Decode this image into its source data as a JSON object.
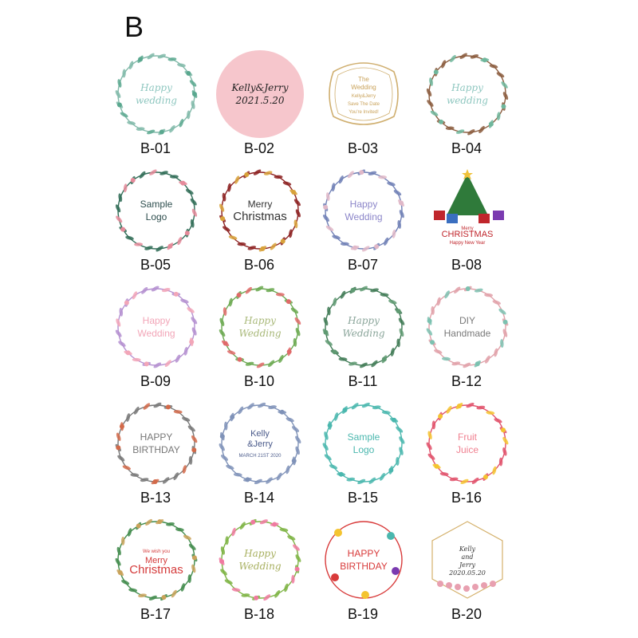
{
  "section_letter": "B",
  "stickers": [
    {
      "code": "B-01",
      "lines": [
        "Happy",
        "wedding"
      ],
      "color": "#8fc7c0",
      "style": "script",
      "bg": "#ffffff",
      "ring": "leaf",
      "ring_color": "#7fb8a8",
      "accent": "#5aa88f"
    },
    {
      "code": "B-02",
      "lines": [
        "Kelly&Jerry",
        "2021.5.20"
      ],
      "color": "#222222",
      "style": "script",
      "bg": "#f6c6cc",
      "ring": "none",
      "ring_color": "#f6c6cc",
      "accent": "#333333"
    },
    {
      "code": "B-03",
      "lines": [
        "The",
        "Wedding",
        "Kelly&Jerry",
        "Save The Date",
        "You're Invited!"
      ],
      "color": "#c9a25a",
      "style": "sans",
      "bg": "#ffffff",
      "ring": "ornate",
      "ring_color": "#cfae6e",
      "accent": "#c9a25a"
    },
    {
      "code": "B-04",
      "lines": [
        "Happy",
        "wedding"
      ],
      "color": "#8fc7c0",
      "style": "script",
      "bg": "#ffffff",
      "ring": "leaf",
      "ring_color": "#8a5a3c",
      "accent": "#6fb79c"
    },
    {
      "code": "B-05",
      "lines": [
        "Sample",
        "Logo"
      ],
      "color": "#2f4f4f",
      "style": "sans",
      "bg": "#ffffff",
      "ring": "leaf",
      "ring_color": "#2e6b55",
      "accent": "#e58a9a"
    },
    {
      "code": "B-06",
      "lines": [
        "Merry",
        "Christmas"
      ],
      "color": "#333333",
      "style": "sans",
      "bg": "#ffffff",
      "ring": "leaf",
      "ring_color": "#8b1e1e",
      "accent": "#d8a23a"
    },
    {
      "code": "B-07",
      "lines": [
        "Happy",
        "Wedding"
      ],
      "color": "#8c86c9",
      "style": "sans",
      "bg": "#ffffff",
      "ring": "leaf",
      "ring_color": "#6f7fb5",
      "accent": "#e0b8c8"
    },
    {
      "code": "B-08",
      "lines": [
        "Merry",
        "CHRISTMAS",
        "Happy New Year"
      ],
      "color": "#c0262c",
      "style": "tree",
      "bg": "#ffffff",
      "ring": "none",
      "ring_color": "#2f7a3a",
      "accent": "#f0c23a"
    },
    {
      "code": "B-09",
      "lines": [
        "Happy",
        "Wedding"
      ],
      "color": "#f2a6b8",
      "style": "sans",
      "bg": "#ffffff",
      "ring": "leaf",
      "ring_color": "#b48fd0",
      "accent": "#f2a6b8"
    },
    {
      "code": "B-10",
      "lines": [
        "Happy",
        "Wedding"
      ],
      "color": "#a8b878",
      "style": "script",
      "bg": "#ffffff",
      "ring": "leaf",
      "ring_color": "#6aa84f",
      "accent": "#e06a6a"
    },
    {
      "code": "B-11",
      "lines": [
        "Happy",
        "Wedding"
      ],
      "color": "#8aa59a",
      "style": "script",
      "bg": "#ffffff",
      "ring": "leaf",
      "ring_color": "#3f7a55",
      "accent": "#5f9a72"
    },
    {
      "code": "B-12",
      "lines": [
        "DIY",
        "Handmade"
      ],
      "color": "#7a7a7a",
      "style": "sans",
      "bg": "#ffffff",
      "ring": "leaf",
      "ring_color": "#e0a0a8",
      "accent": "#7cc1b0"
    },
    {
      "code": "B-13",
      "lines": [
        "HAPPY",
        "BIRTHDAY"
      ],
      "color": "#777777",
      "style": "sans",
      "bg": "#ffffff",
      "ring": "leaf",
      "ring_color": "#777777",
      "accent": "#d26a4a"
    },
    {
      "code": "B-14",
      "lines": [
        "Kelly",
        "&Jerry",
        "MARCH 21ST 2020"
      ],
      "color": "#4a5a8a",
      "style": "sans",
      "bg": "#ffffff",
      "ring": "leaf",
      "ring_color": "#7f92b8",
      "accent": "#7f92b8"
    },
    {
      "code": "B-15",
      "lines": [
        "Sample",
        "Logo"
      ],
      "color": "#4ab7ae",
      "style": "sans",
      "bg": "#ffffff",
      "ring": "leaf",
      "ring_color": "#4ab7ae",
      "accent": "#4ab7ae"
    },
    {
      "code": "B-16",
      "lines": [
        "Fruit",
        "Juice"
      ],
      "color": "#f08090",
      "style": "sans",
      "bg": "#ffffff",
      "ring": "leaf",
      "ring_color": "#e0506a",
      "accent": "#f4c430"
    },
    {
      "code": "B-17",
      "lines": [
        "We wish you",
        "Merry",
        "Christmas"
      ],
      "color": "#d43a3a",
      "style": "sans",
      "bg": "#ffffff",
      "ring": "leaf",
      "ring_color": "#3f8a4a",
      "accent": "#c9a25a"
    },
    {
      "code": "B-18",
      "lines": [
        "Happy",
        "Wedding"
      ],
      "color": "#a8b060",
      "style": "script",
      "bg": "#ffffff",
      "ring": "leaf",
      "ring_color": "#7cb342",
      "accent": "#f07aa0"
    },
    {
      "code": "B-19",
      "lines": [
        "HAPPY",
        "BIRTHDAY"
      ],
      "color": "#d83a3a",
      "style": "sans",
      "bg": "#ffffff",
      "ring": "thin",
      "ring_color": "#d83a3a",
      "accent": "#f4c430"
    },
    {
      "code": "B-20",
      "lines": [
        "Kelly",
        "and",
        "Jerry",
        "2020.05.20"
      ],
      "color": "#333333",
      "style": "script",
      "bg": "#ffffff",
      "ring": "geo",
      "ring_color": "#d4b06a",
      "accent": "#e8a0b0"
    }
  ]
}
